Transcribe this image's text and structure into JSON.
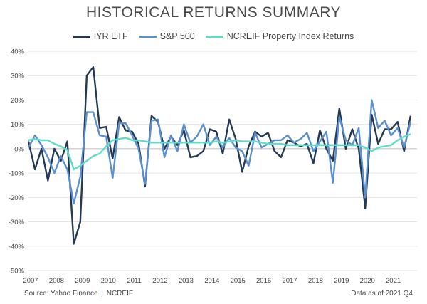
{
  "chart_data": {
    "type": "line",
    "title": "HISTORICAL RETURNS SUMMARY",
    "ylim": [
      -50,
      40
    ],
    "yticks": [
      -50,
      -40,
      -30,
      -20,
      -10,
      0,
      10,
      20,
      30,
      40
    ],
    "ytick_labels": [
      "-50%",
      "-40%",
      "-30%",
      "-20%",
      "-10%",
      "0%",
      "10%",
      "20%",
      "30%",
      "40%"
    ],
    "xlim": [
      2007,
      2022
    ],
    "xticks": [
      2007,
      2008,
      2009,
      2010,
      2011,
      2012,
      2013,
      2014,
      2015,
      2016,
      2017,
      2018,
      2019,
      2020,
      2021
    ],
    "xtick_labels": [
      "2007",
      "2008",
      "2009",
      "2010",
      "2011",
      "2012",
      "2013",
      "2014",
      "2015",
      "2016",
      "2017",
      "2018",
      "2019",
      "2020",
      "2021"
    ],
    "grid": "horizontal",
    "legend_position": "top-center",
    "source_label": "Source: Yahoo Finance",
    "source_separator": "|",
    "source_label2": "NCREIF",
    "as_of": "Data as of 2021 Q4",
    "series": [
      {
        "name": "IYR ETF",
        "color": "#243a54",
        "points": [
          [
            2007.0,
            3
          ],
          [
            2007.25,
            -8.5
          ],
          [
            2007.5,
            0
          ],
          [
            2007.75,
            -13
          ],
          [
            2008.0,
            0
          ],
          [
            2008.25,
            -5
          ],
          [
            2008.5,
            3
          ],
          [
            2008.75,
            -39
          ],
          [
            2009.0,
            -30
          ],
          [
            2009.25,
            30
          ],
          [
            2009.5,
            33.5
          ],
          [
            2009.75,
            8.5
          ],
          [
            2010.0,
            9
          ],
          [
            2010.25,
            -4
          ],
          [
            2010.5,
            13
          ],
          [
            2010.75,
            7.5
          ],
          [
            2011.0,
            7
          ],
          [
            2011.25,
            2
          ],
          [
            2011.5,
            -15.5
          ],
          [
            2011.75,
            13.5
          ],
          [
            2012.0,
            11
          ],
          [
            2012.25,
            0
          ],
          [
            2012.5,
            5
          ],
          [
            2012.75,
            1.5
          ],
          [
            2013.0,
            7.5
          ],
          [
            2013.25,
            -3.5
          ],
          [
            2013.5,
            -3
          ],
          [
            2013.75,
            -1
          ],
          [
            2014.0,
            8
          ],
          [
            2014.25,
            7
          ],
          [
            2014.5,
            -2
          ],
          [
            2014.75,
            12
          ],
          [
            2015.0,
            4
          ],
          [
            2015.25,
            -9.5
          ],
          [
            2015.5,
            1
          ],
          [
            2015.75,
            7
          ],
          [
            2016.0,
            5
          ],
          [
            2016.25,
            6.5
          ],
          [
            2016.5,
            -1
          ],
          [
            2016.75,
            -3.5
          ],
          [
            2017.0,
            3.5
          ],
          [
            2017.25,
            2.5
          ],
          [
            2017.5,
            1
          ],
          [
            2017.75,
            2
          ],
          [
            2018.0,
            -6
          ],
          [
            2018.25,
            7.5
          ],
          [
            2018.5,
            0
          ],
          [
            2018.75,
            -5
          ],
          [
            2019.0,
            16.5
          ],
          [
            2019.25,
            0
          ],
          [
            2019.5,
            8
          ],
          [
            2019.75,
            0
          ],
          [
            2020.0,
            -24.5
          ],
          [
            2020.25,
            14
          ],
          [
            2020.5,
            2
          ],
          [
            2020.75,
            8
          ],
          [
            2021.0,
            8
          ],
          [
            2021.25,
            11
          ],
          [
            2021.5,
            -1
          ],
          [
            2021.75,
            13.5
          ]
        ]
      },
      {
        "name": "S&P 500",
        "color": "#5b8fcd",
        "points": [
          [
            2007.0,
            0.5
          ],
          [
            2007.25,
            5.5
          ],
          [
            2007.5,
            1.5
          ],
          [
            2007.75,
            -3.5
          ],
          [
            2008.0,
            -10
          ],
          [
            2008.25,
            -3
          ],
          [
            2008.5,
            -8.5
          ],
          [
            2008.75,
            -22.5
          ],
          [
            2009.0,
            -11.5
          ],
          [
            2009.25,
            15
          ],
          [
            2009.5,
            15
          ],
          [
            2009.75,
            5.5
          ],
          [
            2010.0,
            5
          ],
          [
            2010.25,
            -12
          ],
          [
            2010.5,
            10.5
          ],
          [
            2010.75,
            10.5
          ],
          [
            2011.0,
            5.5
          ],
          [
            2011.25,
            0
          ],
          [
            2011.5,
            -14.5
          ],
          [
            2011.75,
            11.5
          ],
          [
            2012.0,
            12
          ],
          [
            2012.25,
            -3.5
          ],
          [
            2012.5,
            5.5
          ],
          [
            2012.75,
            -1
          ],
          [
            2013.0,
            10
          ],
          [
            2013.25,
            2.5
          ],
          [
            2013.5,
            5
          ],
          [
            2013.75,
            10
          ],
          [
            2014.0,
            1.5
          ],
          [
            2014.25,
            5
          ],
          [
            2014.5,
            0.5
          ],
          [
            2014.75,
            4.5
          ],
          [
            2015.0,
            0.5
          ],
          [
            2015.25,
            -1
          ],
          [
            2015.5,
            -7
          ],
          [
            2015.75,
            6.5
          ],
          [
            2016.0,
            0.5
          ],
          [
            2016.25,
            2
          ],
          [
            2016.5,
            3.5
          ],
          [
            2016.75,
            3.5
          ],
          [
            2017.0,
            5.5
          ],
          [
            2017.25,
            2.5
          ],
          [
            2017.5,
            4
          ],
          [
            2017.75,
            6.5
          ],
          [
            2018.0,
            -1
          ],
          [
            2018.25,
            3
          ],
          [
            2018.5,
            7
          ],
          [
            2018.75,
            -14
          ],
          [
            2019.0,
            13
          ],
          [
            2019.25,
            3.5
          ],
          [
            2019.5,
            1.5
          ],
          [
            2019.75,
            8.5
          ],
          [
            2020.0,
            -20
          ],
          [
            2020.25,
            20
          ],
          [
            2020.5,
            8.5
          ],
          [
            2020.75,
            11.5
          ],
          [
            2021.0,
            5.5
          ],
          [
            2021.25,
            8.5
          ],
          [
            2021.5,
            0.5
          ],
          [
            2021.75,
            11
          ]
        ]
      },
      {
        "name": "NCREIF Property Index Returns",
        "color": "#5fdcc6",
        "points": [
          [
            2007.0,
            3.5
          ],
          [
            2007.25,
            4
          ],
          [
            2007.5,
            3.5
          ],
          [
            2007.75,
            3.5
          ],
          [
            2008.0,
            2
          ],
          [
            2008.25,
            1
          ],
          [
            2008.5,
            -0.5
          ],
          [
            2008.75,
            -8.5
          ],
          [
            2009.0,
            -7
          ],
          [
            2009.25,
            -5
          ],
          [
            2009.5,
            -3
          ],
          [
            2009.75,
            -2
          ],
          [
            2010.0,
            1
          ],
          [
            2010.25,
            3.5
          ],
          [
            2010.5,
            4
          ],
          [
            2010.75,
            4.5
          ],
          [
            2011.0,
            3.5
          ],
          [
            2011.25,
            3.5
          ],
          [
            2011.5,
            3
          ],
          [
            2011.75,
            2.5
          ],
          [
            2012.0,
            2.5
          ],
          [
            2012.25,
            2.5
          ],
          [
            2012.5,
            2.5
          ],
          [
            2012.75,
            2.5
          ],
          [
            2013.0,
            2.5
          ],
          [
            2013.25,
            2.5
          ],
          [
            2013.5,
            2.5
          ],
          [
            2013.75,
            2.5
          ],
          [
            2014.0,
            2.5
          ],
          [
            2014.25,
            3
          ],
          [
            2014.5,
            2.5
          ],
          [
            2014.75,
            3
          ],
          [
            2015.0,
            3.5
          ],
          [
            2015.25,
            3
          ],
          [
            2015.5,
            3
          ],
          [
            2015.75,
            3
          ],
          [
            2016.0,
            2.5
          ],
          [
            2016.25,
            2
          ],
          [
            2016.5,
            2
          ],
          [
            2016.75,
            2
          ],
          [
            2017.0,
            1.5
          ],
          [
            2017.25,
            1.5
          ],
          [
            2017.5,
            1.5
          ],
          [
            2017.75,
            1.5
          ],
          [
            2018.0,
            1.5
          ],
          [
            2018.25,
            1.5
          ],
          [
            2018.5,
            1.5
          ],
          [
            2018.75,
            1.5
          ],
          [
            2019.0,
            1.5
          ],
          [
            2019.25,
            1.5
          ],
          [
            2019.5,
            1.5
          ],
          [
            2019.75,
            1.5
          ],
          [
            2020.0,
            0.5
          ],
          [
            2020.25,
            -1
          ],
          [
            2020.5,
            0.5
          ],
          [
            2020.75,
            1
          ],
          [
            2021.0,
            1.5
          ],
          [
            2021.25,
            3.5
          ],
          [
            2021.5,
            5
          ],
          [
            2021.75,
            6
          ]
        ]
      }
    ]
  }
}
